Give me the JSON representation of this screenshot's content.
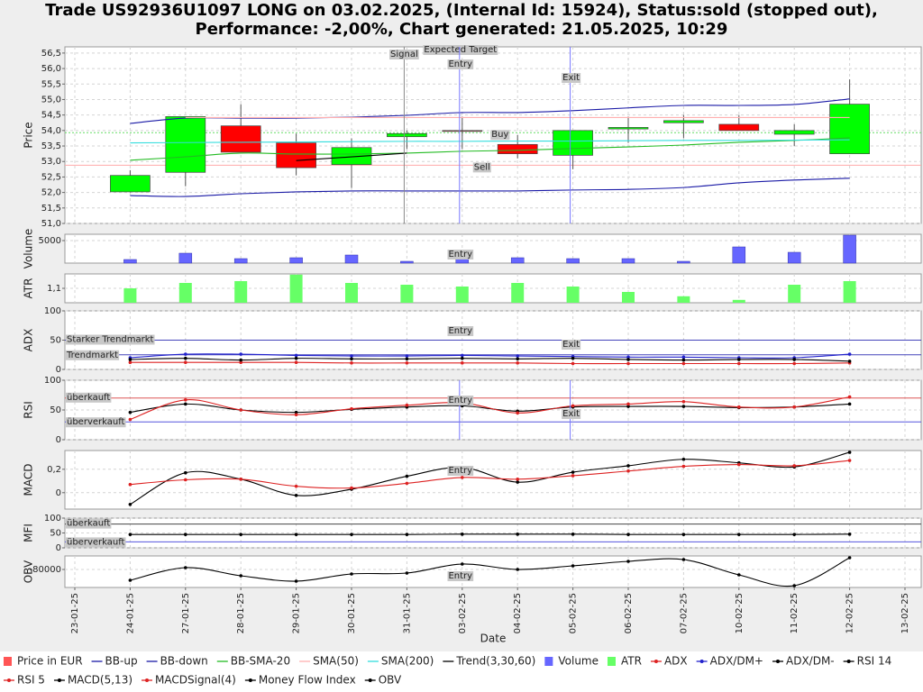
{
  "chart_data": [
    {
      "type": "candlestick",
      "title": "Trade US92936U1097 LONG on 03.02.2025, (Internal Id: 15924), Status:sold (stopped out),",
      "subtitle": "Performance: -2,00%, Chart generated: 21.05.2025, 10:29",
      "ylabel": "Price",
      "ylim": [
        51.0,
        56.7
      ],
      "yticks": [
        {
          "value": 51.0,
          "label": "51,0"
        },
        {
          "value": 51.5,
          "label": "51,5"
        },
        {
          "value": 52.0,
          "label": "52,0"
        },
        {
          "value": 52.5,
          "label": "52,5"
        },
        {
          "value": 53.0,
          "label": "53,0"
        },
        {
          "value": 53.5,
          "label": "53,5"
        },
        {
          "value": 54.0,
          "label": "54,0"
        },
        {
          "value": 54.5,
          "label": "54,5"
        },
        {
          "value": 55.0,
          "label": "55,0"
        },
        {
          "value": 55.5,
          "label": "55,5"
        },
        {
          "value": 56.0,
          "label": "56,0"
        },
        {
          "value": 56.5,
          "label": "56,5"
        }
      ],
      "grid": true,
      "series": [
        {
          "name": "Price in EUR",
          "type": "candlestick",
          "color": "#ff5555",
          "up_color": "#00ff00",
          "down_color": "#ff0000",
          "open": [
            null,
            52.02,
            52.65,
            54.15,
            53.6,
            52.9,
            53.8,
            54.0,
            53.55,
            53.2,
            54.05,
            54.25,
            54.2,
            53.88,
            53.25,
            null
          ],
          "high": [
            null,
            52.72,
            54.45,
            54.85,
            53.9,
            53.75,
            54.0,
            54.45,
            53.85,
            54.0,
            54.45,
            54.5,
            54.5,
            54.2,
            55.65,
            null
          ],
          "low": [
            null,
            52.0,
            52.2,
            53.3,
            52.55,
            52.15,
            53.4,
            53.4,
            53.1,
            52.75,
            53.6,
            53.75,
            54.0,
            53.5,
            53.25,
            null
          ],
          "close": [
            null,
            52.55,
            54.45,
            53.3,
            52.8,
            53.45,
            53.9,
            54.0,
            53.25,
            54.0,
            54.1,
            54.32,
            54.0,
            54.0,
            54.85,
            null
          ]
        },
        {
          "name": "BB-up",
          "type": "line",
          "color": "#1a1aa6",
          "values": [
            null,
            54.23,
            54.4,
            54.4,
            54.4,
            54.43,
            54.49,
            54.58,
            54.58,
            54.64,
            54.73,
            54.81,
            54.81,
            54.84,
            55.02,
            null
          ]
        },
        {
          "name": "BB-down",
          "type": "line",
          "color": "#1a1aa6",
          "values": [
            null,
            51.9,
            51.87,
            51.96,
            52.02,
            52.05,
            52.05,
            52.05,
            52.05,
            52.08,
            52.1,
            52.16,
            52.31,
            52.4,
            52.46,
            null
          ]
        },
        {
          "name": "BB-SMA-20",
          "type": "line",
          "color": "#22bb22",
          "values": [
            null,
            53.04,
            53.15,
            53.27,
            53.24,
            53.24,
            53.27,
            53.33,
            53.36,
            53.42,
            53.47,
            53.53,
            53.62,
            53.68,
            53.76,
            null
          ]
        },
        {
          "name": "SMA(50)",
          "type": "line",
          "color": "#ffb0b0",
          "values": [
            null,
            null,
            54.42,
            54.42,
            54.42,
            54.42,
            54.42,
            54.42,
            54.42,
            54.42,
            54.42,
            54.42,
            54.42,
            54.42,
            54.42,
            null
          ]
        },
        {
          "name": "SMA(200)",
          "type": "line",
          "color": "#33dddd",
          "values": [
            null,
            53.6,
            53.61,
            53.62,
            53.63,
            53.64,
            53.65,
            53.65,
            53.66,
            53.66,
            53.67,
            53.68,
            53.68,
            53.69,
            53.7,
            null
          ]
        },
        {
          "name": "Trend(3,30,60)",
          "type": "line",
          "color": "#000000",
          "values": [
            null,
            null,
            null,
            null,
            53.03,
            53.15,
            53.27,
            null,
            null,
            null,
            null,
            null,
            null,
            null,
            null,
            null
          ]
        }
      ],
      "hlines": [
        {
          "value": 53.93,
          "label": "Buy",
          "color": "#66dd66"
        },
        {
          "value": 52.88,
          "label": "Sell",
          "color": "#ffaaaa"
        }
      ],
      "markers": [
        {
          "at": "31-01-25",
          "label": "Signal",
          "color": "#888888"
        },
        {
          "at": "03-02-25",
          "label": "Expected Target"
        },
        {
          "at": "03-02-25",
          "label": "Entry",
          "color": "#7777ff"
        },
        {
          "at": "05-02-25",
          "label": "Exit",
          "color": "#7777ff"
        }
      ]
    },
    {
      "type": "bar",
      "ylabel": "Volume",
      "ylim": [
        0,
        6400
      ],
      "yticks": [
        5000
      ],
      "grid": true,
      "series": [
        {
          "name": "Volume",
          "type": "bar",
          "color": "#6666ff",
          "values": [
            null,
            800,
            2200,
            1000,
            1200,
            1800,
            400,
            2200,
            1200,
            1000,
            1000,
            400,
            3600,
            2400,
            6200,
            null
          ]
        }
      ],
      "markers": [
        {
          "at": "03-02-25",
          "label": "Entry"
        }
      ]
    },
    {
      "type": "bar",
      "ylabel": "ATR",
      "ylim": [
        0.9,
        1.3
      ],
      "yticks": [
        {
          "value": 1.1,
          "label": "1,1"
        }
      ],
      "grid": true,
      "series": [
        {
          "name": "ATR",
          "type": "bar",
          "color": "#66ff66",
          "values": [
            null,
            1.1,
            1.175,
            1.2,
            1.29,
            1.175,
            1.15,
            1.125,
            1.175,
            1.125,
            1.05,
            0.99,
            0.94,
            1.15,
            1.2,
            null
          ]
        }
      ]
    },
    {
      "type": "line",
      "ylabel": "ADX",
      "ylim": [
        0,
        100
      ],
      "yticks": [
        0,
        50,
        100
      ],
      "grid": true,
      "series": [
        {
          "name": "ADX",
          "type": "line",
          "markers": true,
          "color": "#dd2222",
          "values": [
            null,
            12,
            12,
            12,
            12,
            11,
            11,
            11,
            11,
            10,
            10,
            10,
            10,
            10,
            11,
            null
          ]
        },
        {
          "name": "ADX/DM+",
          "type": "line",
          "markers": true,
          "color": "#2222cc",
          "values": [
            null,
            20,
            26,
            26,
            24,
            23,
            23,
            24,
            23,
            22,
            21,
            21,
            20,
            20,
            26,
            null
          ]
        },
        {
          "name": "ADX/DM-",
          "type": "line",
          "markers": true,
          "color": "#000000",
          "values": [
            null,
            17,
            19,
            16,
            19,
            18,
            18,
            19,
            18,
            19,
            17,
            16,
            17,
            17,
            14,
            null
          ]
        }
      ],
      "hlines": [
        {
          "value": 50,
          "label": "Starker Trendmarkt",
          "color": "#4444bb"
        },
        {
          "value": 25,
          "label": "Trendmarkt",
          "color": "#4444bb"
        }
      ],
      "markers": [
        {
          "at": "03-02-25",
          "label": "Entry"
        },
        {
          "at": "05-02-25",
          "label": "Exit"
        }
      ]
    },
    {
      "type": "line",
      "ylabel": "RSI",
      "ylim": [
        0,
        100
      ],
      "yticks": [
        0,
        50,
        100
      ],
      "grid": true,
      "series": [
        {
          "name": "RSI 14",
          "type": "line",
          "markers": true,
          "color": "#000000",
          "values": [
            null,
            46,
            60,
            50,
            46,
            51,
            55,
            57,
            48,
            55,
            56,
            56,
            54,
            55,
            60,
            null
          ]
        },
        {
          "name": "RSI 5",
          "type": "line",
          "markers": true,
          "color": "#dd2222",
          "values": [
            null,
            34,
            67,
            50,
            42,
            52,
            58,
            62,
            45,
            57,
            60,
            64,
            55,
            55,
            72,
            null
          ]
        }
      ],
      "hlines": [
        {
          "value": 70,
          "label": "überkauft",
          "color": "#dd5555"
        },
        {
          "value": 30,
          "label": "überverkauft",
          "color": "#5555dd"
        }
      ],
      "markers": [
        {
          "at": "03-02-25",
          "label": "Entry",
          "color": "#7777ff"
        },
        {
          "at": "05-02-25",
          "label": "Exit",
          "color": "#7777ff"
        }
      ]
    },
    {
      "type": "line",
      "ylabel": "MACD",
      "ylim": [
        -0.14,
        0.36
      ],
      "yticks": [
        0,
        {
          "value": 0.2,
          "label": "0,2"
        }
      ],
      "grid": true,
      "series": [
        {
          "name": "MACD(5,13)",
          "type": "line",
          "markers": true,
          "color": "#000000",
          "values": [
            null,
            -0.1,
            0.17,
            0.115,
            -0.023,
            0.03,
            0.14,
            0.215,
            0.09,
            0.175,
            0.23,
            0.285,
            0.255,
            0.22,
            0.345,
            null
          ]
        },
        {
          "name": "MACDSignal(4)",
          "type": "line",
          "markers": true,
          "color": "#dd2222",
          "values": [
            null,
            0.07,
            0.11,
            0.115,
            0.055,
            0.04,
            0.08,
            0.13,
            0.115,
            0.145,
            0.185,
            0.225,
            0.24,
            0.23,
            0.275,
            null
          ]
        }
      ],
      "markers": [
        {
          "at": "03-02-25",
          "label": "Entry"
        }
      ]
    },
    {
      "type": "line",
      "ylabel": "MFI",
      "ylim": [
        0,
        100
      ],
      "yticks": [
        0,
        50,
        100
      ],
      "grid": true,
      "series": [
        {
          "name": "Money Flow Index",
          "type": "line",
          "markers": true,
          "color": "#000000",
          "values": [
            null,
            45,
            45,
            45,
            45,
            45,
            45,
            46,
            46,
            46,
            45,
            45,
            45,
            45,
            46,
            null
          ]
        }
      ],
      "hlines": [
        {
          "value": 80,
          "label": "überkauft",
          "color": "#444444"
        },
        {
          "value": 20,
          "label": "überverkauft",
          "color": "#5555dd"
        }
      ]
    },
    {
      "type": "line",
      "ylabel": "OBV",
      "ylim": [
        -84400,
        -76700
      ],
      "yticks": [
        -80000
      ],
      "grid": true,
      "series": [
        {
          "name": "OBV",
          "type": "line",
          "markers": true,
          "color": "#000000",
          "values": [
            null,
            -82640,
            -79560,
            -81540,
            -82860,
            -81100,
            -80880,
            -78680,
            -80000,
            -79120,
            -78020,
            -77580,
            -81320,
            -83960,
            -77140,
            null
          ]
        }
      ],
      "markers": [
        {
          "at": "03-02-25",
          "label": "Entry"
        }
      ],
      "xlabel": "Date",
      "categories": [
        "23-01-25",
        "24-01-25",
        "27-01-25",
        "28-01-25",
        "29-01-25",
        "30-01-25",
        "31-01-25",
        "03-02-25",
        "04-02-25",
        "05-02-25",
        "06-02-25",
        "07-02-25",
        "10-02-25",
        "11-02-25",
        "12-02-25",
        "13-02-25"
      ]
    }
  ]
}
